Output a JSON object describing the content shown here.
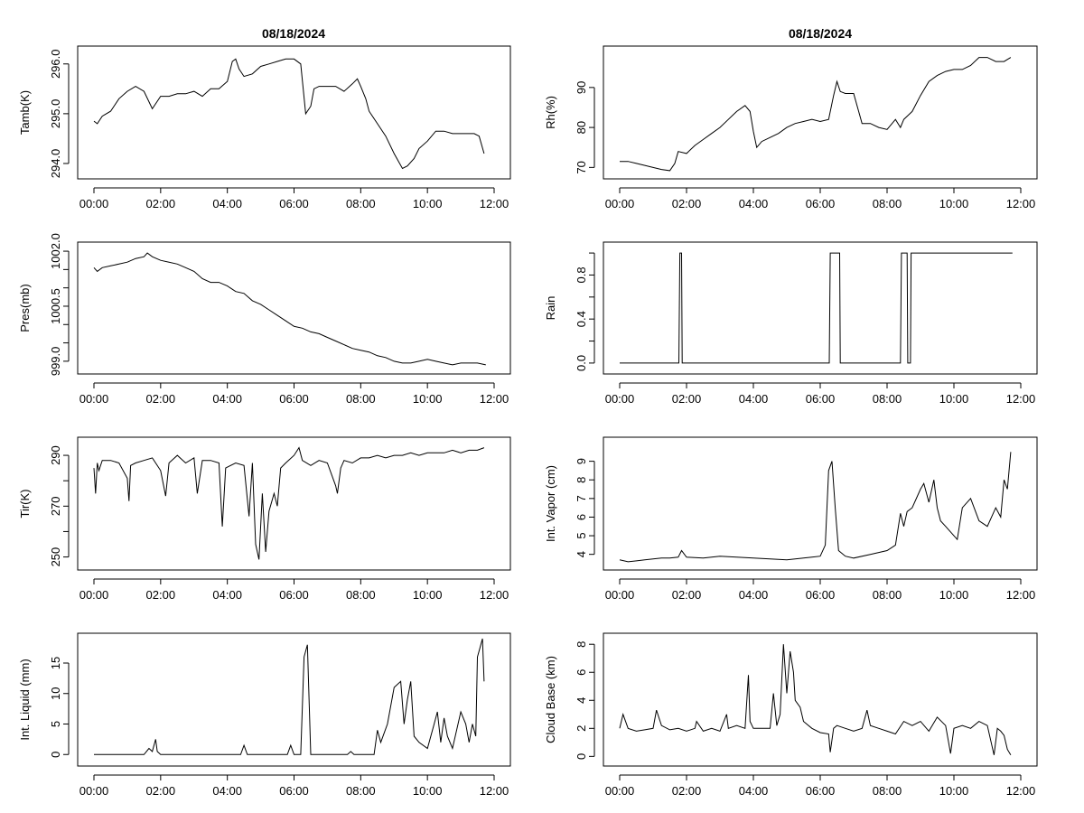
{
  "figure": {
    "titles": [
      "08/18/2024",
      "08/18/2024"
    ],
    "x_ticks": [
      "00:00",
      "02:00",
      "04:00",
      "06:00",
      "08:00",
      "10:00",
      "12:00"
    ],
    "line_color": "#000000"
  },
  "chart_data": [
    {
      "type": "line",
      "title": "08/18/2024",
      "ylabel": "Tamb(K)",
      "xlabel": "",
      "xlim": [
        0,
        12
      ],
      "ylim": [
        293.8,
        296.25
      ],
      "y_ticks": [
        "294.0",
        "295.0",
        "296.0"
      ],
      "y_tick_values": [
        294,
        295,
        296
      ],
      "x": [
        0,
        0.1,
        0.25,
        0.5,
        0.75,
        1,
        1.25,
        1.5,
        1.75,
        2,
        2.25,
        2.5,
        2.75,
        3,
        3.25,
        3.5,
        3.75,
        4,
        4.15,
        4.25,
        4.35,
        4.5,
        4.75,
        5,
        5.25,
        5.5,
        5.75,
        6,
        6.2,
        6.35,
        6.5,
        6.6,
        6.75,
        7,
        7.25,
        7.5,
        7.75,
        7.9,
        8,
        8.15,
        8.25,
        8.5,
        8.75,
        9,
        9.25,
        9.4,
        9.6,
        9.75,
        10,
        10.25,
        10.5,
        10.75,
        11,
        11.25,
        11.4,
        11.55,
        11.7
      ],
      "y": [
        294.85,
        294.8,
        294.95,
        295.05,
        295.3,
        295.45,
        295.55,
        295.45,
        295.1,
        295.35,
        295.35,
        295.4,
        295.4,
        295.45,
        295.35,
        295.5,
        295.5,
        295.65,
        296.05,
        296.1,
        295.9,
        295.75,
        295.8,
        295.95,
        296.0,
        296.05,
        296.1,
        296.1,
        296.0,
        295.0,
        295.15,
        295.5,
        295.55,
        295.55,
        295.55,
        295.45,
        295.6,
        295.7,
        295.55,
        295.3,
        295.05,
        294.8,
        294.55,
        294.2,
        293.9,
        293.95,
        294.1,
        294.3,
        294.45,
        294.65,
        294.65,
        294.6,
        294.6,
        294.6,
        294.6,
        294.55,
        294.2
      ]
    },
    {
      "type": "line",
      "title": "08/18/2024",
      "ylabel": "Rh(%)",
      "xlabel": "",
      "xlim": [
        0,
        12
      ],
      "ylim": [
        68.5,
        99
      ],
      "y_ticks": [
        "70",
        "80",
        "90"
      ],
      "y_tick_values": [
        70,
        80,
        90
      ],
      "x": [
        0,
        0.25,
        0.5,
        0.75,
        1,
        1.25,
        1.5,
        1.65,
        1.75,
        2,
        2.25,
        2.5,
        2.75,
        3,
        3.25,
        3.5,
        3.75,
        3.9,
        4,
        4.1,
        4.25,
        4.5,
        4.75,
        5,
        5.25,
        5.5,
        5.75,
        6,
        6.25,
        6.4,
        6.5,
        6.6,
        6.75,
        7,
        7.25,
        7.5,
        7.75,
        8,
        8.25,
        8.4,
        8.5,
        8.75,
        9,
        9.25,
        9.5,
        9.75,
        10,
        10.25,
        10.5,
        10.75,
        11,
        11.25,
        11.5,
        11.7
      ],
      "y": [
        71.5,
        71.5,
        71,
        70.5,
        70,
        69.5,
        69.2,
        71,
        74,
        73.5,
        75.5,
        77,
        78.5,
        80,
        82,
        84,
        85.5,
        84,
        79,
        75,
        76.5,
        77.5,
        78.5,
        80,
        81,
        81.5,
        82,
        81.5,
        82,
        88,
        91.5,
        89,
        88.5,
        88.5,
        81,
        81,
        80,
        79.5,
        82,
        80,
        82,
        84,
        88,
        91.5,
        93,
        94,
        94.5,
        94.5,
        95.5,
        97.5,
        97.5,
        96.5,
        96.5,
        97.5
      ]
    },
    {
      "type": "line",
      "title": "",
      "ylabel": "Pres(mb)",
      "xlabel": "",
      "xlim": [
        0,
        12
      ],
      "ylim": [
        998.8,
        1002.1
      ],
      "y_ticks": [
        "999.0",
        "1000.5",
        "1002.0"
      ],
      "y_tick_values": [
        999.0,
        999.5,
        1000.0,
        1000.5,
        1001.0,
        1001.5,
        1002.0
      ],
      "x": [
        0,
        0.1,
        0.25,
        0.5,
        0.75,
        1,
        1.25,
        1.5,
        1.6,
        1.75,
        2,
        2.25,
        2.5,
        2.75,
        3,
        3.25,
        3.5,
        3.75,
        4,
        4.25,
        4.5,
        4.75,
        5,
        5.25,
        5.5,
        5.75,
        6,
        6.25,
        6.5,
        6.75,
        7,
        7.25,
        7.5,
        7.75,
        8,
        8.25,
        8.5,
        8.75,
        9,
        9.25,
        9.5,
        9.75,
        10,
        10.25,
        10.5,
        10.75,
        11,
        11.25,
        11.5,
        11.75
      ],
      "y": [
        1001.55,
        1001.45,
        1001.55,
        1001.6,
        1001.65,
        1001.7,
        1001.8,
        1001.85,
        1001.95,
        1001.85,
        1001.75,
        1001.7,
        1001.65,
        1001.55,
        1001.45,
        1001.25,
        1001.15,
        1001.15,
        1001.05,
        1000.9,
        1000.85,
        1000.65,
        1000.55,
        1000.4,
        1000.25,
        1000.1,
        999.95,
        999.9,
        999.8,
        999.75,
        999.65,
        999.55,
        999.45,
        999.35,
        999.3,
        999.25,
        999.15,
        999.1,
        999.0,
        998.95,
        998.95,
        999.0,
        999.05,
        999.0,
        998.95,
        998.9,
        998.95,
        998.95,
        998.95,
        998.9
      ]
    },
    {
      "type": "line",
      "title": "",
      "ylabel": "Rain",
      "xlabel": "",
      "xlim": [
        0,
        12
      ],
      "ylim": [
        -0.05,
        1.05
      ],
      "y_ticks": [
        "0.0",
        "0.4",
        "0.8"
      ],
      "y_tick_values": [
        0.0,
        0.2,
        0.4,
        0.6,
        0.8,
        1.0
      ],
      "x": [
        0,
        1.77,
        1.8,
        1.85,
        1.87,
        6.27,
        6.3,
        6.58,
        6.6,
        8.4,
        8.43,
        8.6,
        8.62,
        8.7,
        8.72,
        11.75
      ],
      "y": [
        0,
        0,
        1,
        1,
        0,
        0,
        1,
        1,
        0,
        0,
        1,
        1,
        0,
        0,
        1,
        1
      ]
    },
    {
      "type": "line",
      "title": "",
      "ylabel": "Tir(K)",
      "xlabel": "",
      "xlim": [
        0,
        12
      ],
      "ylim": [
        247,
        295
      ],
      "y_ticks": [
        "250",
        "270",
        "290"
      ],
      "y_tick_values": [
        250,
        260,
        270,
        280,
        290
      ],
      "x": [
        0,
        0.05,
        0.1,
        0.15,
        0.25,
        0.5,
        0.75,
        1,
        1.05,
        1.1,
        1.25,
        1.5,
        1.75,
        2,
        2.15,
        2.25,
        2.5,
        2.75,
        3,
        3.1,
        3.25,
        3.5,
        3.75,
        3.85,
        3.95,
        4.25,
        4.5,
        4.65,
        4.75,
        4.85,
        4.95,
        5.05,
        5.15,
        5.25,
        5.4,
        5.5,
        5.6,
        5.75,
        6,
        6.15,
        6.25,
        6.5,
        6.75,
        7,
        7.25,
        7.3,
        7.4,
        7.5,
        7.75,
        8,
        8.25,
        8.5,
        8.75,
        9,
        9.25,
        9.5,
        9.75,
        10,
        10.25,
        10.5,
        10.75,
        11,
        11.25,
        11.5,
        11.7
      ],
      "y": [
        285,
        275,
        287,
        284,
        288,
        288,
        287,
        281,
        272,
        286,
        287,
        288,
        289,
        284,
        274,
        287,
        290,
        287,
        289,
        275,
        288,
        288,
        287,
        262,
        285,
        287,
        286,
        266,
        287,
        255,
        249,
        275,
        252,
        268,
        275,
        270,
        285,
        287,
        290,
        293,
        288,
        286,
        288,
        287,
        278,
        275,
        285,
        288,
        287,
        289,
        289,
        290,
        289,
        290,
        290,
        291,
        290,
        291,
        291,
        291,
        292,
        291,
        292,
        292,
        293
      ]
    },
    {
      "type": "line",
      "title": "",
      "ylabel": "Int. Vapor (cm)",
      "xlabel": "",
      "xlim": [
        0,
        12
      ],
      "ylim": [
        3.45,
        10
      ],
      "y_ticks": [
        "4",
        "5",
        "6",
        "7",
        "8",
        "9"
      ],
      "y_tick_values": [
        4,
        5,
        6,
        7,
        8,
        9
      ],
      "x": [
        0,
        0.25,
        0.5,
        0.75,
        1,
        1.25,
        1.5,
        1.75,
        1.85,
        2,
        2.5,
        3,
        3.5,
        4,
        4.5,
        5,
        5.5,
        5.75,
        6,
        6.15,
        6.25,
        6.35,
        6.45,
        6.55,
        6.75,
        7,
        7.5,
        8,
        8.25,
        8.4,
        8.5,
        8.6,
        8.75,
        9,
        9.1,
        9.25,
        9.4,
        9.5,
        9.6,
        9.75,
        10,
        10.1,
        10.25,
        10.5,
        10.75,
        11,
        11.25,
        11.4,
        11.5,
        11.6,
        11.7
      ],
      "y": [
        3.7,
        3.6,
        3.65,
        3.7,
        3.75,
        3.8,
        3.8,
        3.85,
        4.2,
        3.85,
        3.8,
        3.9,
        3.85,
        3.8,
        3.75,
        3.7,
        3.8,
        3.85,
        3.9,
        4.5,
        8.5,
        9.0,
        6.5,
        4.2,
        3.9,
        3.8,
        4.0,
        4.2,
        4.5,
        6.2,
        5.5,
        6.3,
        6.5,
        7.5,
        7.8,
        6.8,
        8.0,
        6.5,
        5.8,
        5.5,
        5.0,
        4.8,
        6.5,
        7.0,
        5.8,
        5.5,
        6.5,
        6.0,
        8.0,
        7.5,
        9.5
      ]
    },
    {
      "type": "line",
      "title": "",
      "ylabel": "Int. Liquid (mm)",
      "xlabel": "",
      "xlim": [
        0,
        12
      ],
      "ylim": [
        -1,
        19
      ],
      "y_ticks": [
        "0",
        "5",
        "10",
        "15"
      ],
      "y_tick_values": [
        0,
        5,
        10,
        15
      ],
      "x": [
        0,
        1.5,
        1.65,
        1.75,
        1.85,
        1.9,
        2.0,
        2.1,
        4.4,
        4.5,
        4.6,
        5.8,
        5.9,
        6.0,
        6.2,
        6.3,
        6.4,
        6.5,
        7.6,
        7.7,
        7.8,
        8.4,
        8.5,
        8.6,
        8.8,
        9.0,
        9.2,
        9.3,
        9.4,
        9.5,
        9.6,
        9.75,
        10.0,
        10.2,
        10.3,
        10.4,
        10.5,
        10.6,
        10.75,
        11.0,
        11.15,
        11.25,
        11.35,
        11.45,
        11.5,
        11.55,
        11.65,
        11.7
      ],
      "y": [
        0,
        0,
        1,
        0.5,
        2.5,
        0.5,
        0,
        0,
        0,
        1.5,
        0,
        0,
        1.5,
        0,
        0,
        16,
        18,
        0,
        0,
        0.5,
        0,
        0,
        4,
        2,
        5,
        11,
        12,
        5,
        9,
        12,
        3,
        2,
        1,
        5,
        7,
        2,
        6,
        3,
        1,
        7,
        5,
        2,
        5,
        3,
        16,
        17,
        19,
        12
      ]
    },
    {
      "type": "line",
      "title": "",
      "ylabel": "Cloud Base (km)",
      "xlabel": "",
      "xlim": [
        0,
        12
      ],
      "ylim": [
        -0.3,
        8.4
      ],
      "y_ticks": [
        "0",
        "2",
        "4",
        "6",
        "8"
      ],
      "y_tick_values": [
        0,
        2,
        4,
        6,
        8
      ],
      "x": [
        0,
        0.1,
        0.25,
        0.5,
        0.75,
        1,
        1.1,
        1.25,
        1.5,
        1.75,
        2,
        2.25,
        2.3,
        2.5,
        2.75,
        3,
        3.2,
        3.25,
        3.5,
        3.75,
        3.85,
        3.9,
        4,
        4.25,
        4.5,
        4.6,
        4.7,
        4.8,
        4.9,
        5.0,
        5.1,
        5.2,
        5.25,
        5.4,
        5.5,
        5.75,
        6,
        6.25,
        6.3,
        6.4,
        6.5,
        6.75,
        7,
        7.25,
        7.4,
        7.5,
        7.75,
        8,
        8.25,
        8.5,
        8.75,
        9,
        9.25,
        9.5,
        9.75,
        9.9,
        10,
        10.25,
        10.5,
        10.75,
        11,
        11.2,
        11.3,
        11.4,
        11.5,
        11.6,
        11.7
      ],
      "y": [
        2.0,
        3.0,
        2.0,
        1.8,
        1.9,
        2.0,
        3.3,
        2.2,
        1.9,
        2.0,
        1.8,
        2.0,
        2.5,
        1.8,
        2.0,
        1.8,
        3.0,
        2.0,
        2.2,
        2.0,
        5.8,
        2.5,
        2.0,
        2.0,
        2.0,
        4.5,
        2.2,
        3.0,
        8.0,
        4.5,
        7.5,
        6.0,
        4.0,
        3.5,
        2.5,
        2.0,
        1.7,
        1.6,
        0.3,
        2.0,
        2.2,
        2.0,
        1.8,
        2.0,
        3.3,
        2.2,
        2.0,
        1.8,
        1.6,
        2.5,
        2.2,
        2.5,
        1.8,
        2.8,
        2.2,
        0.2,
        2.0,
        2.2,
        2.0,
        2.5,
        2.2,
        0.1,
        2.0,
        1.8,
        1.5,
        0.5,
        0.1
      ]
    }
  ]
}
